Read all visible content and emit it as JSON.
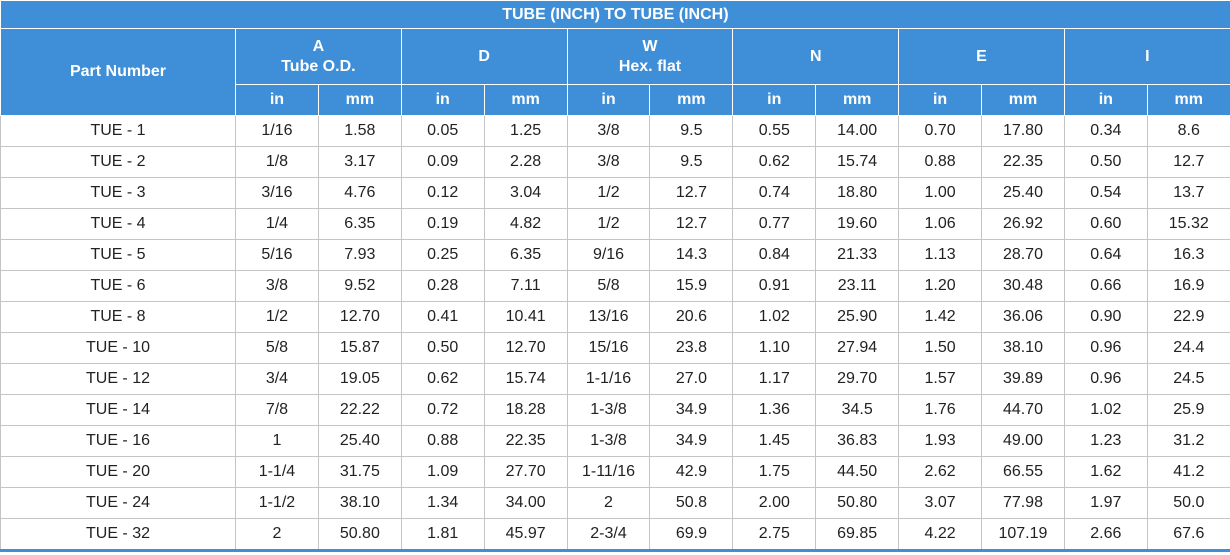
{
  "title": "TUBE (INCH) TO TUBE (INCH)",
  "first_header": "Part Number",
  "groups": [
    {
      "label": "A",
      "sub": "Tube O.D."
    },
    {
      "label": "D"
    },
    {
      "label": "W",
      "sub": "Hex. flat"
    },
    {
      "label": "N"
    },
    {
      "label": "E"
    },
    {
      "label": "I"
    }
  ],
  "units": [
    "in",
    "mm",
    "in",
    "mm",
    "in",
    "mm",
    "in",
    "mm",
    "in",
    "mm",
    "in",
    "mm"
  ],
  "rows": [
    [
      "TUE - 1",
      "1/16",
      "1.58",
      "0.05",
      "1.25",
      "3/8",
      "9.5",
      "0.55",
      "14.00",
      "0.70",
      "17.80",
      "0.34",
      "8.6"
    ],
    [
      "TUE - 2",
      "1/8",
      "3.17",
      "0.09",
      "2.28",
      "3/8",
      "9.5",
      "0.62",
      "15.74",
      "0.88",
      "22.35",
      "0.50",
      "12.7"
    ],
    [
      "TUE - 3",
      "3/16",
      "4.76",
      "0.12",
      "3.04",
      "1/2",
      "12.7",
      "0.74",
      "18.80",
      "1.00",
      "25.40",
      "0.54",
      "13.7"
    ],
    [
      "TUE - 4",
      "1/4",
      "6.35",
      "0.19",
      "4.82",
      "1/2",
      "12.7",
      "0.77",
      "19.60",
      "1.06",
      "26.92",
      "0.60",
      "15.32"
    ],
    [
      "TUE - 5",
      "5/16",
      "7.93",
      "0.25",
      "6.35",
      "9/16",
      "14.3",
      "0.84",
      "21.33",
      "1.13",
      "28.70",
      "0.64",
      "16.3"
    ],
    [
      "TUE - 6",
      "3/8",
      "9.52",
      "0.28",
      "7.11",
      "5/8",
      "15.9",
      "0.91",
      "23.11",
      "1.20",
      "30.48",
      "0.66",
      "16.9"
    ],
    [
      "TUE - 8",
      "1/2",
      "12.70",
      "0.41",
      "10.41",
      "13/16",
      "20.6",
      "1.02",
      "25.90",
      "1.42",
      "36.06",
      "0.90",
      "22.9"
    ],
    [
      "TUE - 10",
      "5/8",
      "15.87",
      "0.50",
      "12.70",
      "15/16",
      "23.8",
      "1.10",
      "27.94",
      "1.50",
      "38.10",
      "0.96",
      "24.4"
    ],
    [
      "TUE - 12",
      "3/4",
      "19.05",
      "0.62",
      "15.74",
      "1-1/16",
      "27.0",
      "1.17",
      "29.70",
      "1.57",
      "39.89",
      "0.96",
      "24.5"
    ],
    [
      "TUE - 14",
      "7/8",
      "22.22",
      "0.72",
      "18.28",
      "1-3/8",
      "34.9",
      "1.36",
      "34.5",
      "1.76",
      "44.70",
      "1.02",
      "25.9"
    ],
    [
      "TUE - 16",
      "1",
      "25.40",
      "0.88",
      "22.35",
      "1-3/8",
      "34.9",
      "1.45",
      "36.83",
      "1.93",
      "49.00",
      "1.23",
      "31.2"
    ],
    [
      "TUE - 20",
      "1-1/4",
      "31.75",
      "1.09",
      "27.70",
      "1-11/16",
      "42.9",
      "1.75",
      "44.50",
      "2.62",
      "66.55",
      "1.62",
      "41.2"
    ],
    [
      "TUE - 24",
      "1-1/2",
      "38.10",
      "1.34",
      "34.00",
      "2",
      "50.8",
      "2.00",
      "50.80",
      "3.07",
      "77.98",
      "1.97",
      "50.0"
    ],
    [
      "TUE - 32",
      "2",
      "50.80",
      "1.81",
      "45.97",
      "2-3/4",
      "69.9",
      "2.75",
      "69.85",
      "4.22",
      "107.19",
      "2.66",
      "67.6"
    ]
  ]
}
